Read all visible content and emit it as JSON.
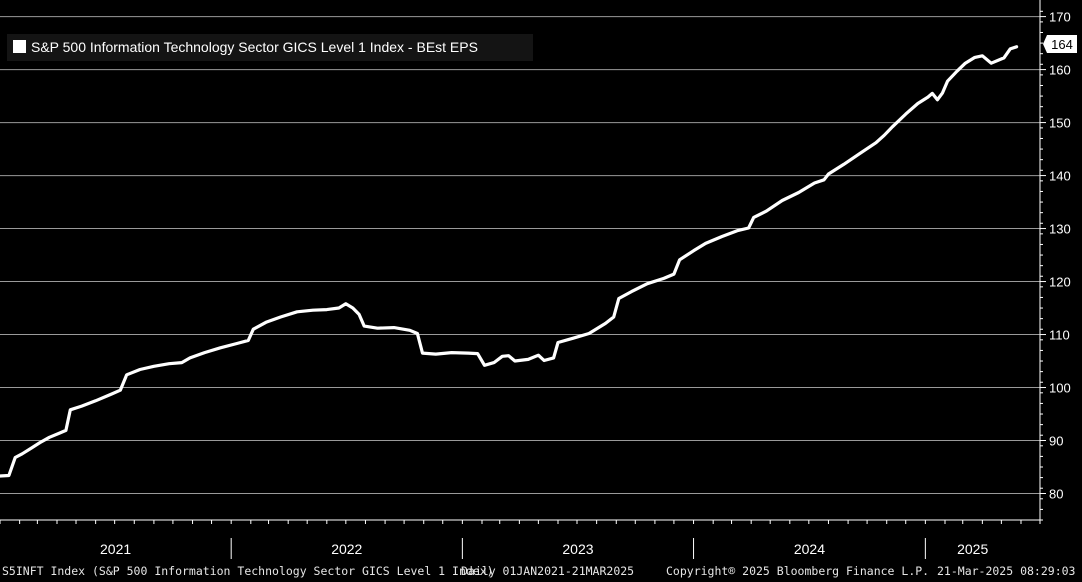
{
  "footer": {
    "ticker": "S5INFT Index (S&P 500 Information Technology Sector GICS Level 1 Index)",
    "range": "Daily 01JAN2021-21MAR2025",
    "copyright": "Copyright® 2025 Bloomberg Finance L.P.",
    "timestamp": "21-Mar-2025 08:29:03"
  },
  "colors": {
    "background": "#000000",
    "line": "#ffffff",
    "grid": "#9a9a9a",
    "text": "#ffffff"
  },
  "chart_data": {
    "type": "line",
    "title": "",
    "xlabel": "",
    "ylabel": "",
    "grid": true,
    "legend": "top-left",
    "ylim": [
      75,
      172
    ],
    "y_ticks": [
      80,
      90,
      100,
      110,
      120,
      130,
      140,
      150,
      160,
      170
    ],
    "x_tick_labels": [
      "2021",
      "2022",
      "2023",
      "2024",
      "2025"
    ],
    "last_value_label": "164",
    "series": [
      {
        "name": "S&P 500 Information Technology Sector GICS Level 1 Index - BEst EPS",
        "color": "#ffffff",
        "points": [
          [
            "2021-01-01",
            83.3
          ],
          [
            "2021-01-15",
            83.4
          ],
          [
            "2021-01-25",
            86.8
          ],
          [
            "2021-02-05",
            87.5
          ],
          [
            "2021-02-20",
            88.6
          ],
          [
            "2021-03-05",
            89.6
          ],
          [
            "2021-03-20",
            90.6
          ],
          [
            "2021-04-05",
            91.4
          ],
          [
            "2021-04-15",
            91.9
          ],
          [
            "2021-04-22",
            95.8
          ],
          [
            "2021-05-10",
            96.5
          ],
          [
            "2021-06-01",
            97.5
          ],
          [
            "2021-06-25",
            98.7
          ],
          [
            "2021-07-10",
            99.5
          ],
          [
            "2021-07-20",
            102.4
          ],
          [
            "2021-08-10",
            103.4
          ],
          [
            "2021-09-01",
            104.0
          ],
          [
            "2021-09-25",
            104.5
          ],
          [
            "2021-10-15",
            104.7
          ],
          [
            "2021-10-28",
            105.6
          ],
          [
            "2021-11-20",
            106.6
          ],
          [
            "2021-12-15",
            107.5
          ],
          [
            "2022-01-10",
            108.3
          ],
          [
            "2022-01-28",
            108.9
          ],
          [
            "2022-02-05",
            111.0
          ],
          [
            "2022-02-25",
            112.3
          ],
          [
            "2022-03-20",
            113.3
          ],
          [
            "2022-04-15",
            114.3
          ],
          [
            "2022-05-10",
            114.6
          ],
          [
            "2022-06-01",
            114.7
          ],
          [
            "2022-06-20",
            115.0
          ],
          [
            "2022-07-01",
            115.8
          ],
          [
            "2022-07-12",
            115.0
          ],
          [
            "2022-07-22",
            113.8
          ],
          [
            "2022-07-30",
            111.6
          ],
          [
            "2022-08-20",
            111.2
          ],
          [
            "2022-09-15",
            111.3
          ],
          [
            "2022-10-10",
            110.8
          ],
          [
            "2022-10-22",
            110.2
          ],
          [
            "2022-10-30",
            106.5
          ],
          [
            "2022-11-20",
            106.3
          ],
          [
            "2022-12-15",
            106.6
          ],
          [
            "2023-01-10",
            106.5
          ],
          [
            "2023-01-25",
            106.4
          ],
          [
            "2023-02-05",
            104.2
          ],
          [
            "2023-02-20",
            104.7
          ],
          [
            "2023-03-05",
            105.9
          ],
          [
            "2023-03-15",
            106.0
          ],
          [
            "2023-03-25",
            105.0
          ],
          [
            "2023-04-15",
            105.3
          ],
          [
            "2023-05-01",
            106.1
          ],
          [
            "2023-05-10",
            105.1
          ],
          [
            "2023-05-25",
            105.6
          ],
          [
            "2023-06-01",
            108.5
          ],
          [
            "2023-06-25",
            109.3
          ],
          [
            "2023-07-20",
            110.2
          ],
          [
            "2023-08-15",
            112.1
          ],
          [
            "2023-08-28",
            113.3
          ],
          [
            "2023-09-05",
            116.8
          ],
          [
            "2023-09-25",
            118.1
          ],
          [
            "2023-10-20",
            119.6
          ],
          [
            "2023-11-15",
            120.6
          ],
          [
            "2023-12-01",
            121.4
          ],
          [
            "2023-12-10",
            124.1
          ],
          [
            "2024-01-01",
            125.8
          ],
          [
            "2024-01-20",
            127.2
          ],
          [
            "2024-02-15",
            128.5
          ],
          [
            "2024-03-10",
            129.6
          ],
          [
            "2024-03-28",
            130.1
          ],
          [
            "2024-04-05",
            132.1
          ],
          [
            "2024-04-25",
            133.3
          ],
          [
            "2024-05-20",
            135.3
          ],
          [
            "2024-06-15",
            136.8
          ],
          [
            "2024-07-10",
            138.6
          ],
          [
            "2024-07-25",
            139.2
          ],
          [
            "2024-08-01",
            140.3
          ],
          [
            "2024-08-25",
            142.1
          ],
          [
            "2024-09-20",
            144.2
          ],
          [
            "2024-10-15",
            146.2
          ],
          [
            "2024-10-28",
            147.6
          ],
          [
            "2024-11-10",
            149.2
          ],
          [
            "2024-12-01",
            151.6
          ],
          [
            "2024-12-20",
            153.6
          ],
          [
            "2025-01-05",
            154.8
          ],
          [
            "2025-01-12",
            155.5
          ],
          [
            "2025-01-20",
            154.3
          ],
          [
            "2025-01-28",
            155.6
          ],
          [
            "2025-02-05",
            157.8
          ],
          [
            "2025-02-20",
            159.7
          ],
          [
            "2025-03-05",
            161.2
          ],
          [
            "2025-03-20",
            162.3
          ],
          [
            "2025-04-01",
            162.6
          ],
          [
            "2025-04-15",
            161.2
          ],
          [
            "2025-05-05",
            162.2
          ],
          [
            "2025-05-15",
            163.9
          ],
          [
            "2025-05-25",
            164.3
          ]
        ]
      }
    ]
  }
}
